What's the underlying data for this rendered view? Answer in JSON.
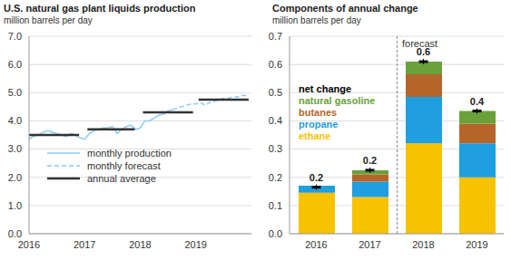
{
  "chart_data": [
    {
      "type": "line",
      "title": "U.S. natural gas plant liquids production",
      "subtitle": "million barrels per day",
      "xlim": [
        2016,
        2020
      ],
      "xticks": [
        2016,
        2017,
        2018,
        2019
      ],
      "ylim": [
        0,
        7
      ],
      "yticks": [
        {
          "value": 0,
          "label": "0.0"
        },
        {
          "value": 1,
          "label": "1.0"
        },
        {
          "value": 2,
          "label": "2.0"
        },
        {
          "value": 3,
          "label": "3.0"
        },
        {
          "value": 4,
          "label": "4.0"
        },
        {
          "value": 5,
          "label": "5.0"
        },
        {
          "value": 6,
          "label": "6.0"
        },
        {
          "value": 7,
          "label": "7.0"
        }
      ],
      "grid": true,
      "legend": "lower left",
      "series": [
        {
          "name": "monthly production",
          "color": "#8fcdf0",
          "line_style": "solid",
          "x": [
            2016.0,
            2016.083,
            2016.167,
            2016.25,
            2016.333,
            2016.417,
            2016.5,
            2016.583,
            2016.667,
            2016.75,
            2016.833,
            2016.917,
            2017.0,
            2017.083,
            2017.167,
            2017.25,
            2017.333,
            2017.417,
            2017.5,
            2017.583,
            2017.667,
            2017.75,
            2017.833,
            2017.917,
            2018.0,
            2018.083,
            2018.167,
            2018.25,
            2018.333,
            2018.417,
            2018.5,
            2018.583
          ],
          "values": [
            3.35,
            3.45,
            3.5,
            3.6,
            3.65,
            3.6,
            3.55,
            3.5,
            3.45,
            3.55,
            3.5,
            3.4,
            3.35,
            3.55,
            3.65,
            3.7,
            3.75,
            3.75,
            3.8,
            3.55,
            3.7,
            3.8,
            3.85,
            3.7,
            3.75,
            4.0,
            4.0,
            4.1,
            4.2,
            4.25,
            4.35,
            4.4
          ]
        },
        {
          "name": "monthly forecast",
          "color": "#8fcdf0",
          "line_style": "dashed",
          "x": [
            2018.583,
            2018.667,
            2018.75,
            2018.833,
            2018.917,
            2019.0,
            2019.083,
            2019.167,
            2019.25,
            2019.333,
            2019.417,
            2019.5,
            2019.583,
            2019.667,
            2019.75,
            2019.833,
            2019.917
          ],
          "values": [
            4.4,
            4.45,
            4.5,
            4.55,
            4.6,
            4.6,
            4.65,
            4.55,
            4.65,
            4.7,
            4.75,
            4.8,
            4.8,
            4.85,
            4.85,
            4.9,
            4.9
          ]
        },
        {
          "name": "annual average",
          "color": "#333333",
          "line_style": "solid",
          "x": [
            2016.0,
            2016.9,
            2016.95,
            2017.05,
            2017.9,
            2017.95,
            2018.05,
            2018.95,
            2018.97,
            2019.05,
            2019.95
          ],
          "values": [
            3.5,
            3.5,
            null,
            3.7,
            3.7,
            null,
            4.3,
            4.3,
            null,
            4.75,
            4.75
          ]
        }
      ]
    },
    {
      "type": "bar",
      "stacked": true,
      "title": "Components of annual change",
      "subtitle": "million barrels per day",
      "annotations": [
        "forecast"
      ],
      "categories": [
        "2016",
        "2017",
        "2018",
        "2019"
      ],
      "ylim": [
        0,
        0.7
      ],
      "yticks": [
        {
          "value": 0,
          "label": "0.0"
        },
        0.1,
        0.2,
        0.3,
        0.4,
        0.5,
        0.6,
        0.7
      ],
      "grid": true,
      "legend": "upper left",
      "series": [
        {
          "name": "ethane",
          "color": "#f7c300",
          "values": [
            0.145,
            0.13,
            0.32,
            0.2
          ]
        },
        {
          "name": "propane",
          "color": "#1f9ee0",
          "values": [
            0.025,
            0.055,
            0.165,
            0.12
          ]
        },
        {
          "name": "butanes",
          "color": "#b5652a",
          "values": [
            0.0,
            0.025,
            0.08,
            0.07
          ]
        },
        {
          "name": "natural gasoline",
          "color": "#6aa13a",
          "values": [
            0.0,
            0.015,
            0.045,
            0.045
          ]
        },
        {
          "name": "net change",
          "type": "scatter",
          "color": "#000000",
          "data_labels": true,
          "values": [
            0.165,
            0.225,
            0.61,
            0.435
          ],
          "value_labels": [
            "0.2",
            "0.2",
            "0.6",
            "0.4"
          ]
        }
      ]
    }
  ]
}
